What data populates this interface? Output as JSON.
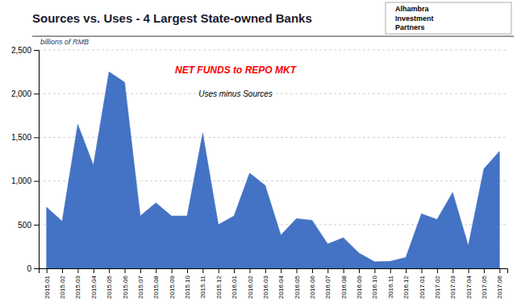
{
  "chart_data": {
    "type": "area",
    "title": "Sources vs. Uses - 4 Largest State-owned Banks",
    "annotations": [
      "billions of RMB",
      "NET FUNDS to REPO MKT",
      "Uses minus Sources",
      "Alhambra",
      "Investment",
      "Partners"
    ],
    "categories": [
      "2015.01",
      "2015.02",
      "2015.03",
      "2015.04",
      "2015.05",
      "2015.06",
      "2015.07",
      "2015.08",
      "2015.09",
      "2015.10",
      "2015.11",
      "2015.12",
      "2016.01",
      "2016.02",
      "2016.03",
      "2016.04",
      "2016.05",
      "2016.06",
      "2016.07",
      "2016.08",
      "2016.09",
      "2016.10",
      "2016.11",
      "2016.12",
      "2017.01",
      "2017.02",
      "2017.03",
      "2017.04",
      "2017.05",
      "2017.06"
    ],
    "values": [
      700,
      540,
      1650,
      1180,
      2250,
      2130,
      600,
      750,
      600,
      600,
      1550,
      500,
      600,
      1090,
      950,
      380,
      570,
      550,
      280,
      350,
      175,
      75,
      80,
      125,
      625,
      560,
      870,
      260,
      1140,
      1340
    ],
    "color": "#4472C4",
    "ylim": [
      0,
      2500
    ],
    "yticks": [
      0,
      500,
      {
        "value": 1000,
        "label": "1,000"
      },
      {
        "value": 1500,
        "label": "1,500"
      },
      {
        "value": 2000,
        "label": "2,000"
      },
      {
        "value": 2500,
        "label": "2,500"
      }
    ],
    "grid": true
  }
}
